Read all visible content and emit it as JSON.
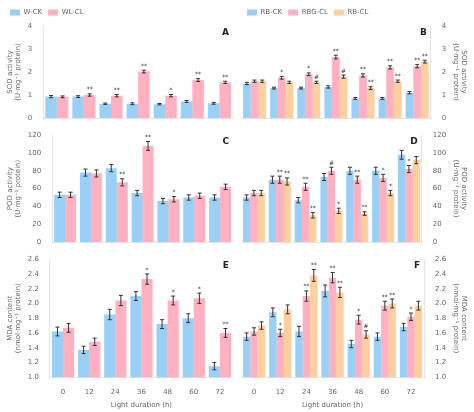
{
  "chart_data": [
    {
      "type": "bar",
      "title": "A",
      "categories": [
        "0",
        "12",
        "24",
        "36",
        "48",
        "60",
        "72"
      ],
      "ylabel": "SOD activity (U·mg⁻¹ protein)",
      "ylim": [
        0,
        4
      ],
      "yticks": [
        0,
        1,
        2,
        3,
        4
      ],
      "grid": false,
      "legend": "upper left",
      "tick_labels": "y",
      "series": [
        {
          "name": "W-CK",
          "values": [
            0.93,
            0.93,
            0.62,
            0.62,
            0.6,
            0.72,
            0.64
          ],
          "errors": [
            0.05,
            0.04,
            0.03,
            0.04,
            0.03,
            0.04,
            0.04
          ]
        },
        {
          "name": "WL-CL",
          "values": [
            0.92,
            1.0,
            0.97,
            2.02,
            0.97,
            1.65,
            1.55
          ],
          "errors": [
            0.04,
            0.05,
            0.05,
            0.06,
            0.05,
            0.06,
            0.05
          ],
          "annotations": [
            null,
            "**",
            "**",
            "**",
            "*",
            "**",
            "**"
          ]
        }
      ]
    },
    {
      "type": "bar",
      "title": "B",
      "categories": [
        "0",
        "12",
        "24",
        "36",
        "48",
        "60",
        "72"
      ],
      "ylabel": "SOD activity (U·mg⁻¹ protein)",
      "ylim": [
        0,
        4
      ],
      "yticks": [
        0,
        1,
        2,
        3,
        4
      ],
      "grid": false,
      "legend": "upper left",
      "tick_labels": "y",
      "series": [
        {
          "name": "RB-CK",
          "values": [
            1.5,
            1.3,
            1.3,
            1.35,
            0.85,
            0.85,
            1.1
          ],
          "errors": [
            0.05,
            0.04,
            0.04,
            0.05,
            0.04,
            0.04,
            0.05
          ]
        },
        {
          "name": "RBG-CL",
          "values": [
            1.6,
            1.75,
            1.9,
            2.65,
            1.85,
            2.2,
            2.25
          ],
          "errors": [
            0.05,
            0.06,
            0.06,
            0.08,
            0.07,
            0.07,
            0.07
          ],
          "annotations": [
            null,
            "*",
            "*",
            "**",
            "**",
            "**",
            "**"
          ]
        },
        {
          "name": "RB-CL",
          "values": [
            1.6,
            1.55,
            1.55,
            1.8,
            1.3,
            1.6,
            2.45
          ],
          "errors": [
            0.05,
            0.05,
            0.05,
            0.07,
            0.06,
            0.05,
            0.06
          ],
          "annotations": [
            null,
            null,
            "#",
            "#",
            "**",
            "**",
            "**"
          ]
        }
      ]
    },
    {
      "type": "bar",
      "title": "C",
      "categories": [
        "0",
        "12",
        "24",
        "36",
        "48",
        "60",
        "72"
      ],
      "ylabel": "POD activity (U·mg⁻¹ protein)",
      "ylim": [
        0,
        120
      ],
      "yticks": [
        0,
        20,
        40,
        60,
        80,
        100,
        120
      ],
      "grid": false,
      "tick_labels": "y",
      "series": [
        {
          "name": "W-CK",
          "values": [
            53,
            78,
            83,
            55,
            46,
            50,
            50
          ],
          "errors": [
            3,
            4,
            4,
            3,
            3,
            3,
            3
          ]
        },
        {
          "name": "WL-CL",
          "values": [
            53,
            77,
            67,
            108,
            48,
            52,
            62
          ],
          "errors": [
            3,
            4,
            4,
            5,
            3,
            3,
            3
          ],
          "annotations": [
            null,
            null,
            "**",
            "**",
            "*",
            null,
            null
          ]
        }
      ]
    },
    {
      "type": "bar",
      "title": "D",
      "categories": [
        "0",
        "12",
        "24",
        "36",
        "48",
        "60",
        "72"
      ],
      "ylabel": "POD activity (U·mg⁻¹ protein)",
      "ylim": [
        0,
        120
      ],
      "yticks": [
        0,
        20,
        40,
        60,
        80,
        100,
        120
      ],
      "grid": false,
      "tick_labels": "y",
      "series": [
        {
          "name": "RB-CK",
          "values": [
            50,
            70,
            47,
            73,
            80,
            80,
            98
          ],
          "errors": [
            3,
            4,
            3,
            4,
            4,
            4,
            5
          ]
        },
        {
          "name": "RBG-CL",
          "values": [
            55,
            70,
            62,
            80,
            70,
            72,
            82
          ],
          "errors": [
            3,
            4,
            4,
            4,
            4,
            4,
            4
          ],
          "annotations": [
            null,
            "**",
            "**",
            "#",
            "**",
            "*",
            "*"
          ]
        },
        {
          "name": "RB-CL",
          "values": [
            55,
            68,
            30,
            35,
            32,
            55,
            92
          ],
          "errors": [
            3,
            4,
            3,
            3,
            2,
            3,
            4
          ],
          "annotations": [
            null,
            "**",
            "**",
            "*",
            "**",
            "*",
            null
          ]
        }
      ]
    },
    {
      "type": "bar",
      "title": "E",
      "categories": [
        "0",
        "12",
        "24",
        "36",
        "48",
        "60",
        "72"
      ],
      "xlabel": "Light duration (h)",
      "ylabel": "MDA content (nmol·mg⁻¹ protein)",
      "ylim": [
        1.0,
        2.6
      ],
      "yticks": [
        {
          "value": 1.0,
          "label": "1.0"
        },
        1.2,
        1.4,
        1.6,
        1.8,
        {
          "value": 2.0,
          "label": "2.0"
        },
        2.2,
        2.4,
        2.6
      ],
      "grid": false,
      "series": [
        {
          "name": "W-CK",
          "values": [
            1.62,
            1.37,
            1.85,
            2.1,
            1.72,
            1.8,
            1.15
          ],
          "errors": [
            0.06,
            0.05,
            0.07,
            0.06,
            0.06,
            0.06,
            0.05
          ]
        },
        {
          "name": "WL-CL",
          "values": [
            1.67,
            1.48,
            2.04,
            2.33,
            2.04,
            2.07,
            1.6
          ],
          "errors": [
            0.06,
            0.05,
            0.07,
            0.07,
            0.06,
            0.07,
            0.06
          ],
          "annotations": [
            null,
            null,
            null,
            "*",
            "*",
            "*",
            "**"
          ]
        }
      ]
    },
    {
      "type": "bar",
      "title": "F",
      "categories": [
        "0",
        "12",
        "24",
        "36",
        "48",
        "60",
        "72"
      ],
      "xlabel": "Light duration (h)",
      "ylabel": "MDA content (nmol·mg⁻¹ protein)",
      "ylim": [
        1.0,
        2.6
      ],
      "yticks": [
        {
          "value": 1.0,
          "label": "1.0"
        },
        1.2,
        1.4,
        1.6,
        1.8,
        {
          "value": 2.0,
          "label": "2.0"
        },
        2.2,
        2.4,
        2.6
      ],
      "grid": false,
      "series": [
        {
          "name": "RB-CK",
          "values": [
            1.55,
            1.88,
            1.62,
            2.17,
            1.45,
            1.55,
            1.68
          ],
          "errors": [
            0.05,
            0.06,
            0.07,
            0.08,
            0.05,
            0.05,
            0.05
          ]
        },
        {
          "name": "RBG-CL",
          "values": [
            1.62,
            1.6,
            2.1,
            2.35,
            1.78,
            1.97,
            1.82
          ],
          "errors": [
            0.05,
            0.05,
            0.07,
            0.07,
            0.06,
            0.06,
            0.05
          ],
          "annotations": [
            null,
            "*",
            "**",
            "**",
            "*",
            "**",
            "*"
          ]
        },
        {
          "name": "RB-CL",
          "values": [
            1.7,
            1.92,
            2.38,
            2.15,
            1.58,
            2.0,
            1.97
          ],
          "errors": [
            0.05,
            0.06,
            0.08,
            0.07,
            0.05,
            0.06,
            0.06
          ],
          "annotations": [
            null,
            null,
            "**",
            "**",
            "#",
            "**",
            null
          ]
        }
      ]
    }
  ]
}
